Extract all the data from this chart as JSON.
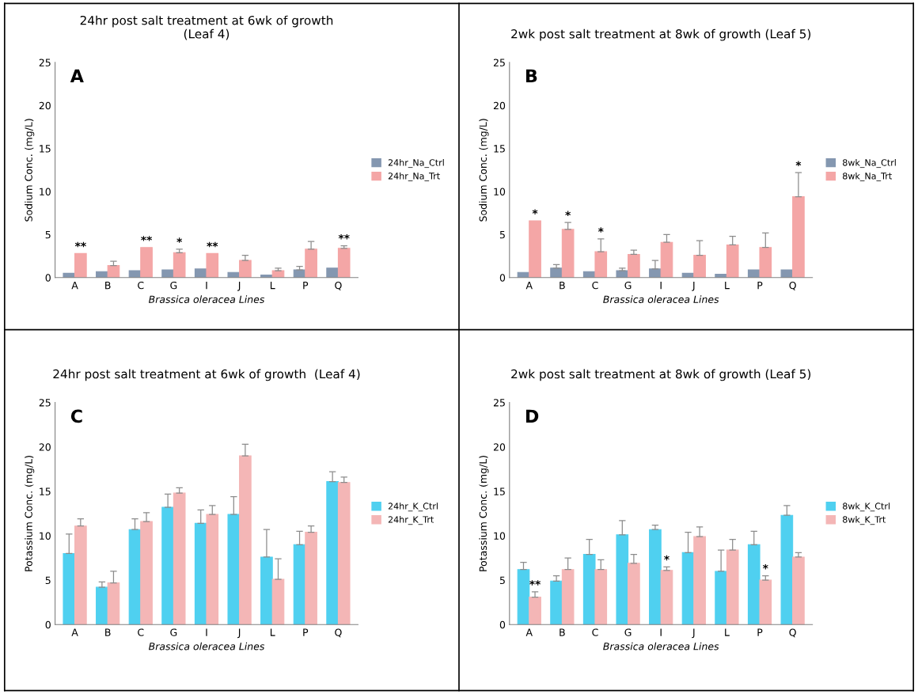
{
  "chart_data": [
    {
      "type": "bar",
      "title": "24hr post salt treatment at 6wk of growth\n(Leaf 4)",
      "xlabel": "Brassica oleracea Lines",
      "ylabel": "Sodium Conc. (mg/L)",
      "categories": [
        "A",
        "B",
        "C",
        "G",
        "I",
        "J",
        "L",
        "P",
        "Q"
      ],
      "series": [
        {
          "name": "24hr_Na_Ctrl",
          "color": "#8497b0",
          "values": [
            0.5,
            0.7,
            0.8,
            0.9,
            1.0,
            0.6,
            0.3,
            0.9,
            1.1
          ],
          "errors": [
            null,
            null,
            null,
            null,
            null,
            null,
            null,
            0.4,
            null
          ]
        },
        {
          "name": "24hr_Na_Trt",
          "color": "#f4a6a6",
          "values": [
            2.8,
            1.4,
            3.5,
            2.9,
            2.8,
            2.0,
            0.8,
            3.3,
            3.4
          ],
          "errors": [
            null,
            0.5,
            null,
            0.4,
            null,
            0.6,
            0.3,
            0.9,
            0.3
          ],
          "value_labels": [
            "**",
            null,
            "**",
            "*",
            "**",
            null,
            null,
            null,
            "**"
          ]
        }
      ],
      "ylim": [
        0,
        25
      ],
      "yticks": [
        0,
        5,
        10,
        15,
        20,
        25
      ],
      "legend": "right",
      "annotations": [
        "A"
      ]
    },
    {
      "type": "bar",
      "title": "2wk post salt treatment at 8wk of growth (Leaf 5)",
      "xlabel": "Brassica oleracea Lines",
      "ylabel": "Sodium Conc. (mg/L)",
      "categories": [
        "A",
        "B",
        "C",
        "G",
        "I",
        "J",
        "L",
        "P",
        "Q"
      ],
      "series": [
        {
          "name": "8wk_Na_Ctrl",
          "color": "#8497b0",
          "values": [
            0.6,
            1.1,
            0.7,
            0.8,
            1.0,
            0.5,
            0.4,
            0.9,
            0.9
          ],
          "errors": [
            null,
            0.4,
            null,
            0.3,
            1.0,
            null,
            null,
            null,
            null
          ]
        },
        {
          "name": "8wk_Na_Trt",
          "color": "#f4a6a6",
          "values": [
            6.6,
            5.6,
            3.0,
            2.7,
            4.1,
            2.6,
            3.8,
            3.5,
            9.4
          ],
          "errors": [
            null,
            0.8,
            1.5,
            0.5,
            0.9,
            1.7,
            1.0,
            1.7,
            2.8
          ],
          "value_labels": [
            "*",
            "*",
            "*",
            null,
            null,
            null,
            null,
            null,
            "*"
          ]
        }
      ],
      "ylim": [
        0,
        25
      ],
      "yticks": [
        0,
        5,
        10,
        15,
        20,
        25
      ],
      "legend": "right",
      "annotations": [
        "B"
      ]
    },
    {
      "type": "bar",
      "title": "24hr post salt treatment at 6wk of growth  (Leaf 4)",
      "xlabel": "Brassica oleracea Lines",
      "ylabel": "Potassium Conc. (mg/L)",
      "categories": [
        "A",
        "B",
        "C",
        "G",
        "I",
        "J",
        "L",
        "P",
        "Q"
      ],
      "series": [
        {
          "name": "24hr_K_Ctrl",
          "color": "#4fd0f0",
          "values": [
            8.0,
            4.2,
            10.7,
            13.2,
            11.4,
            12.4,
            7.6,
            9.0,
            16.1
          ],
          "errors": [
            2.2,
            0.6,
            1.2,
            1.5,
            1.5,
            2.0,
            3.1,
            1.5,
            1.1
          ]
        },
        {
          "name": "24hr_K_Trt",
          "color": "#f4b6b6",
          "values": [
            11.1,
            4.7,
            11.6,
            14.8,
            12.4,
            19.0,
            5.1,
            10.4,
            16.0
          ],
          "errors": [
            0.8,
            1.3,
            1.0,
            0.6,
            1.0,
            1.3,
            2.3,
            0.7,
            0.6
          ]
        }
      ],
      "ylim": [
        0,
        25
      ],
      "yticks": [
        0,
        5,
        10,
        15,
        20,
        25
      ],
      "legend": "right",
      "annotations": [
        "C"
      ]
    },
    {
      "type": "bar",
      "title": "2wk post salt treatment at 8wk of growth (Leaf 5)",
      "xlabel": "Brassica oleracea Lines",
      "ylabel": "Potassium Conc. (mg/L)",
      "categories": [
        "A",
        "B",
        "C",
        "G",
        "I",
        "J",
        "L",
        "P",
        "Q"
      ],
      "series": [
        {
          "name": "8wk_K_Ctrl",
          "color": "#4fd0f0",
          "values": [
            6.2,
            4.9,
            7.9,
            10.1,
            10.7,
            8.1,
            6.0,
            9.0,
            12.3
          ],
          "errors": [
            0.8,
            0.6,
            1.7,
            1.6,
            0.5,
            2.3,
            2.4,
            1.5,
            1.1
          ]
        },
        {
          "name": "8wk_K_Trt",
          "color": "#f4b6b6",
          "values": [
            3.1,
            6.2,
            6.2,
            6.9,
            6.1,
            9.9,
            8.4,
            5.0,
            7.6
          ],
          "errors": [
            0.6,
            1.3,
            1.1,
            1.0,
            0.4,
            1.1,
            1.2,
            0.5,
            0.5
          ],
          "value_labels": [
            "**",
            null,
            null,
            null,
            "*",
            null,
            null,
            "*",
            null
          ]
        }
      ],
      "ylim": [
        0,
        25
      ],
      "yticks": [
        0,
        5,
        10,
        15,
        20,
        25
      ],
      "legend": "right",
      "annotations": [
        "D"
      ]
    }
  ]
}
